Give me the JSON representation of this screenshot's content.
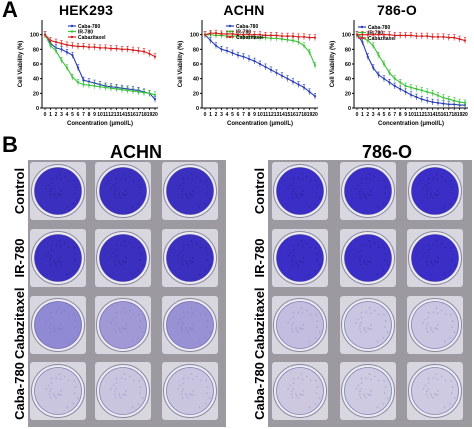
{
  "panels": {
    "a_label": "A",
    "b_label": "B"
  },
  "chart_data": [
    {
      "type": "line",
      "title": "HEK293",
      "ylabel": "Cell Viability (%)",
      "xlabel": "Concentration  (μmol/L)",
      "x": [
        0,
        1,
        2,
        3,
        4,
        5,
        6,
        7,
        8,
        9,
        10,
        11,
        12,
        13,
        14,
        15,
        16,
        17,
        18,
        19,
        20
      ],
      "ylim": [
        0,
        120
      ],
      "yticks": [
        0,
        20,
        40,
        60,
        80,
        100
      ],
      "legend": "top-center",
      "series": [
        {
          "name": "Caba-780",
          "color": "#2b3fb8",
          "values": [
            100,
            88,
            82,
            80,
            76,
            72,
            55,
            38,
            36,
            34,
            32,
            30,
            29,
            28,
            27,
            26,
            25,
            24,
            22,
            20,
            12
          ]
        },
        {
          "name": "IR-780",
          "color": "#3cc43c",
          "values": [
            100,
            85,
            78,
            65,
            55,
            42,
            35,
            32,
            31,
            30,
            29,
            28,
            27,
            26,
            25,
            24,
            23,
            22,
            21,
            20,
            18
          ]
        },
        {
          "name": "Cabazitaxel",
          "color": "#d62020",
          "values": [
            100,
            92,
            90,
            88,
            86,
            85,
            84,
            84,
            83,
            83,
            82,
            82,
            81,
            81,
            80,
            80,
            79,
            78,
            77,
            74,
            70
          ]
        }
      ]
    },
    {
      "type": "line",
      "title": "ACHN",
      "ylabel": "Cell Viability (%)",
      "xlabel": "Concentration  (μmol/L)",
      "x": [
        0,
        1,
        2,
        3,
        4,
        5,
        6,
        7,
        8,
        9,
        10,
        11,
        12,
        13,
        14,
        15,
        16,
        17,
        18,
        19,
        20
      ],
      "ylim": [
        0,
        120
      ],
      "yticks": [
        0,
        20,
        40,
        60,
        80,
        100
      ],
      "legend": "top-center",
      "series": [
        {
          "name": "Caba-780",
          "color": "#2b3fb8",
          "values": [
            100,
            92,
            85,
            80,
            78,
            75,
            72,
            70,
            67,
            64,
            60,
            56,
            52,
            48,
            44,
            40,
            36,
            32,
            28,
            22,
            16
          ]
        },
        {
          "name": "IR-780",
          "color": "#3cc43c",
          "values": [
            100,
            100,
            99,
            99,
            98,
            98,
            98,
            97,
            97,
            97,
            96,
            96,
            95,
            95,
            94,
            93,
            92,
            90,
            85,
            76,
            58
          ]
        },
        {
          "name": "Cabazitaxel",
          "color": "#d62020",
          "values": [
            100,
            102,
            102,
            101,
            101,
            101,
            100,
            100,
            100,
            100,
            100,
            99,
            99,
            99,
            98,
            98,
            98,
            97,
            97,
            96,
            96
          ]
        }
      ]
    },
    {
      "type": "line",
      "title": "786-O",
      "ylabel": "Cell Viability (%)",
      "xlabel": "Concentration  (μmol/L)",
      "x": [
        0,
        1,
        2,
        3,
        4,
        5,
        6,
        7,
        8,
        9,
        10,
        11,
        12,
        13,
        14,
        15,
        16,
        17,
        18,
        19,
        20
      ],
      "ylim": [
        0,
        120
      ],
      "yticks": [
        0,
        20,
        40,
        60,
        80,
        100
      ],
      "legend": "top-left",
      "series": [
        {
          "name": "Caba-780",
          "color": "#2b3fb8",
          "values": [
            100,
            90,
            70,
            55,
            45,
            40,
            35,
            30,
            26,
            22,
            18,
            15,
            12,
            10,
            8,
            7,
            6,
            5,
            5,
            4,
            4
          ]
        },
        {
          "name": "IR-780",
          "color": "#3cc43c",
          "values": [
            100,
            96,
            92,
            85,
            72,
            60,
            48,
            40,
            35,
            30,
            28,
            26,
            24,
            22,
            20,
            17,
            14,
            12,
            10,
            8,
            7
          ]
        },
        {
          "name": "Cabazitaxel",
          "color": "#d62020",
          "values": [
            100,
            100,
            100,
            100,
            100,
            100,
            100,
            99,
            99,
            99,
            99,
            98,
            98,
            98,
            97,
            97,
            97,
            96,
            96,
            94,
            92
          ]
        }
      ]
    }
  ],
  "plates": {
    "groups": [
      {
        "name": "ACHN",
        "well_color": "#3b2fc0"
      },
      {
        "name": "786-O",
        "well_color": "#3a2ec6"
      }
    ],
    "rows": [
      "Control",
      "IR-780",
      "Cabazitaxel",
      "Caba-780"
    ],
    "row_staining": [
      [
        1.0,
        1.0,
        1.0,
        1.0,
        1.0,
        1.0
      ],
      [
        1.0,
        1.0,
        1.0,
        1.0,
        1.0,
        1.0
      ],
      [
        0.45,
        0.35,
        0.4,
        0.12,
        0.08,
        0.08
      ],
      [
        0.08,
        0.08,
        0.08,
        0.06,
        0.05,
        0.05
      ]
    ]
  }
}
